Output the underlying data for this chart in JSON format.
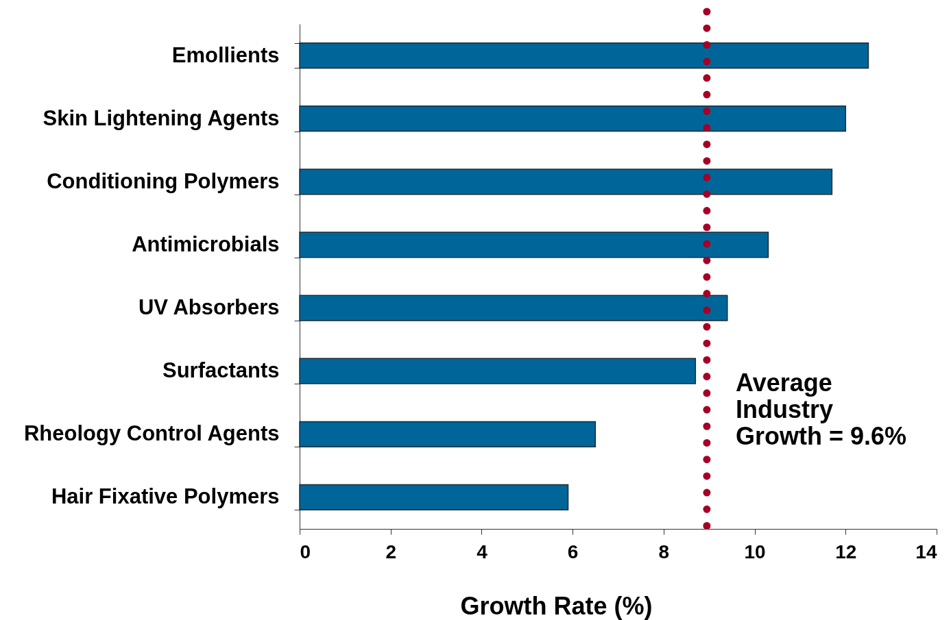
{
  "chart_data": {
    "type": "bar",
    "orientation": "horizontal",
    "categories": [
      "Emollients",
      "Skin Lightening Agents",
      "Conditioning Polymers",
      "Antimicrobials",
      "UV Absorbers",
      "Surfactants",
      "Rheology Control Agents",
      "Hair Fixative Polymers"
    ],
    "values": [
      12.5,
      12.0,
      11.7,
      10.3,
      9.4,
      8.7,
      6.5,
      5.9
    ],
    "color": "#006699",
    "xlabel": "Growth Rate (%)",
    "xlim": [
      0,
      14
    ],
    "xticks": [
      0,
      2,
      4,
      6,
      8,
      10,
      12,
      14
    ],
    "ref_lines": [
      {
        "axis": "x",
        "value": 8.95,
        "color": "#a50026",
        "line_style": "dotted"
      }
    ],
    "annotations": [
      "Average\nIndustry\nGrowth = 9.6%"
    ]
  }
}
